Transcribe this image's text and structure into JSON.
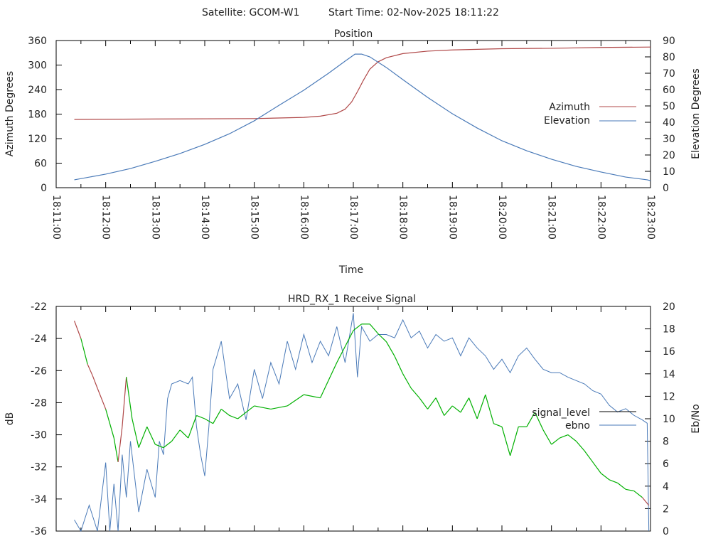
{
  "header": {
    "satellite_label": "Satellite: GCOM-W1",
    "start_time_label": "Start Time: 02-Nov-2025 18:11:22"
  },
  "colors": {
    "azimuth": "#b04848",
    "elevation": "#4a7ab8",
    "signal_good": "#00b000",
    "signal_bad": "#b04848",
    "ebno": "#4a7ab8",
    "legend_signal": "#000000",
    "axis": "#000000"
  },
  "chart_data": [
    {
      "type": "line",
      "title": "Position",
      "xlabel": "Time",
      "ylabel": "Azimuth Degrees",
      "y2label": "Elevation Degrees",
      "xlim_seconds": [
        0,
        720
      ],
      "x_origin": "18:11:00",
      "xticks": [
        "18:11:00",
        "18:12:00",
        "18:13:00",
        "18:14:00",
        "18:15:00",
        "18:16:00",
        "18:17:00",
        "18:18:00",
        "18:19:00",
        "18:20:00",
        "18:21:00",
        "18:22:00",
        "18:23:00"
      ],
      "ylim": [
        0,
        360
      ],
      "yticks": [
        "0",
        "60",
        "120",
        "180",
        "240",
        "300",
        "360"
      ],
      "y2lim": [
        0,
        90
      ],
      "y2ticks": [
        "0",
        "10",
        "20",
        "30",
        "40",
        "50",
        "60",
        "70",
        "80",
        "90"
      ],
      "legend_position": "right",
      "series": [
        {
          "name": "Azimuth",
          "axis": "y",
          "t": [
            22,
            120,
            240,
            300,
            320,
            340,
            350,
            358,
            365,
            372,
            380,
            390,
            400,
            420,
            450,
            480,
            540,
            600,
            660,
            720
          ],
          "values": [
            167,
            168,
            169,
            172,
            175,
            182,
            192,
            210,
            235,
            262,
            290,
            308,
            318,
            328,
            334,
            337,
            340,
            341,
            343,
            344
          ]
        },
        {
          "name": "Elevation",
          "axis": "y2",
          "t": [
            22,
            60,
            90,
            120,
            150,
            180,
            210,
            240,
            270,
            300,
            330,
            350,
            362,
            370,
            380,
            400,
            420,
            450,
            480,
            510,
            540,
            570,
            600,
            630,
            660,
            690,
            716,
            720
          ],
          "values": [
            4.8,
            8.3,
            11.7,
            16.1,
            20.9,
            26.5,
            33.0,
            40.9,
            50.4,
            59.6,
            70.0,
            77.4,
            81.7,
            81.7,
            80.0,
            73.5,
            66.1,
            55.2,
            45.2,
            36.5,
            28.7,
            22.6,
            17.4,
            13.0,
            9.6,
            6.5,
            4.8,
            4.3
          ]
        }
      ]
    },
    {
      "type": "line",
      "title": "HRD_RX_1 Receive Signal",
      "xlabel": "",
      "ylabel": "dB",
      "y2label": "Eb/No",
      "xlim_seconds": [
        0,
        720
      ],
      "ylim": [
        -36,
        -22
      ],
      "yticks": [
        "-36",
        "-34",
        "-32",
        "-30",
        "-28",
        "-26",
        "-24",
        "-22"
      ],
      "y2lim": [
        0,
        20
      ],
      "y2ticks": [
        "0",
        "2",
        "4",
        "6",
        "8",
        "10",
        "12",
        "14",
        "16",
        "18",
        "20"
      ],
      "legend_position": "right",
      "series": [
        {
          "name": "signal_level",
          "axis": "y",
          "t": [
            22,
            30,
            38,
            44,
            50,
            60,
            70,
            75,
            80,
            85,
            92,
            100,
            110,
            120,
            130,
            140,
            150,
            160,
            170,
            180,
            190,
            200,
            210,
            220,
            240,
            260,
            280,
            300,
            320,
            340,
            360,
            370,
            380,
            390,
            400,
            410,
            420,
            430,
            440,
            450,
            460,
            470,
            480,
            490,
            500,
            510,
            520,
            530,
            540,
            550,
            560,
            570,
            580,
            590,
            600,
            610,
            620,
            630,
            640,
            650,
            660,
            670,
            680,
            690,
            700,
            710,
            718
          ],
          "values": [
            -22.9,
            -24.0,
            -25.6,
            -26.3,
            -27.1,
            -28.4,
            -30.2,
            -31.7,
            -29.5,
            -26.4,
            -29.0,
            -30.8,
            -29.5,
            -30.6,
            -30.8,
            -30.4,
            -29.7,
            -30.2,
            -28.8,
            -29.0,
            -29.3,
            -28.4,
            -28.8,
            -29.0,
            -28.2,
            -28.4,
            -28.2,
            -27.5,
            -27.7,
            -25.5,
            -23.5,
            -23.1,
            -23.1,
            -23.7,
            -24.2,
            -25.1,
            -26.2,
            -27.1,
            -27.7,
            -28.4,
            -27.7,
            -28.8,
            -28.2,
            -28.6,
            -27.7,
            -29.0,
            -27.5,
            -29.3,
            -29.5,
            -31.3,
            -29.5,
            -29.5,
            -28.6,
            -29.7,
            -30.6,
            -30.2,
            -30.0,
            -30.4,
            -31.0,
            -31.7,
            -32.4,
            -32.8,
            -33.0,
            -33.4,
            -33.5,
            -33.9,
            -34.4
          ],
          "state": [
            "bad",
            "bad",
            "good",
            "bad",
            "bad",
            "bad",
            "good",
            "good",
            "bad",
            "bad",
            "good",
            "good",
            "good",
            "good",
            "good",
            "good",
            "good",
            "good",
            "good",
            "good",
            "good",
            "good",
            "good",
            "good",
            "good",
            "good",
            "good",
            "good",
            "good",
            "good",
            "good",
            "good",
            "good",
            "good",
            "good",
            "good",
            "good",
            "good",
            "good",
            "good",
            "good",
            "good",
            "good",
            "good",
            "good",
            "good",
            "good",
            "good",
            "good",
            "good",
            "good",
            "good",
            "good",
            "good",
            "good",
            "good",
            "good",
            "good",
            "good",
            "good",
            "good",
            "good",
            "good",
            "good",
            "good",
            "good",
            "bad"
          ]
        },
        {
          "name": "ebno",
          "axis": "y2",
          "t": [
            22,
            30,
            40,
            50,
            60,
            65,
            70,
            75,
            80,
            85,
            90,
            100,
            110,
            120,
            125,
            130,
            135,
            140,
            150,
            160,
            165,
            170,
            175,
            180,
            185,
            190,
            200,
            210,
            220,
            230,
            240,
            250,
            260,
            270,
            280,
            290,
            300,
            310,
            320,
            330,
            340,
            350,
            360,
            365,
            370,
            380,
            390,
            400,
            410,
            420,
            430,
            440,
            450,
            460,
            470,
            480,
            490,
            500,
            510,
            520,
            530,
            540,
            550,
            560,
            570,
            580,
            590,
            600,
            610,
            620,
            630,
            640,
            650,
            660,
            670,
            680,
            690,
            700,
            710,
            716,
            718
          ],
          "values": [
            1.0,
            0.0,
            2.3,
            0.0,
            6.1,
            0.0,
            4.2,
            0.0,
            6.8,
            3.0,
            8.0,
            1.7,
            5.5,
            3.0,
            8.0,
            6.8,
            11.8,
            13.1,
            13.4,
            13.1,
            13.7,
            9.3,
            6.8,
            4.9,
            9.3,
            14.4,
            16.9,
            11.8,
            13.1,
            9.9,
            14.4,
            11.8,
            15.0,
            13.1,
            16.9,
            14.4,
            17.5,
            15.0,
            16.9,
            15.6,
            18.2,
            15.0,
            19.4,
            13.7,
            18.2,
            16.9,
            17.5,
            17.5,
            17.2,
            18.8,
            17.2,
            17.8,
            16.3,
            17.5,
            16.9,
            17.2,
            15.6,
            17.2,
            16.3,
            15.6,
            14.4,
            15.3,
            14.1,
            15.6,
            16.3,
            15.3,
            14.4,
            14.1,
            14.1,
            13.7,
            13.4,
            13.1,
            12.5,
            12.2,
            11.2,
            10.6,
            10.9,
            10.3,
            9.9,
            9.6,
            0.0
          ]
        }
      ]
    }
  ]
}
